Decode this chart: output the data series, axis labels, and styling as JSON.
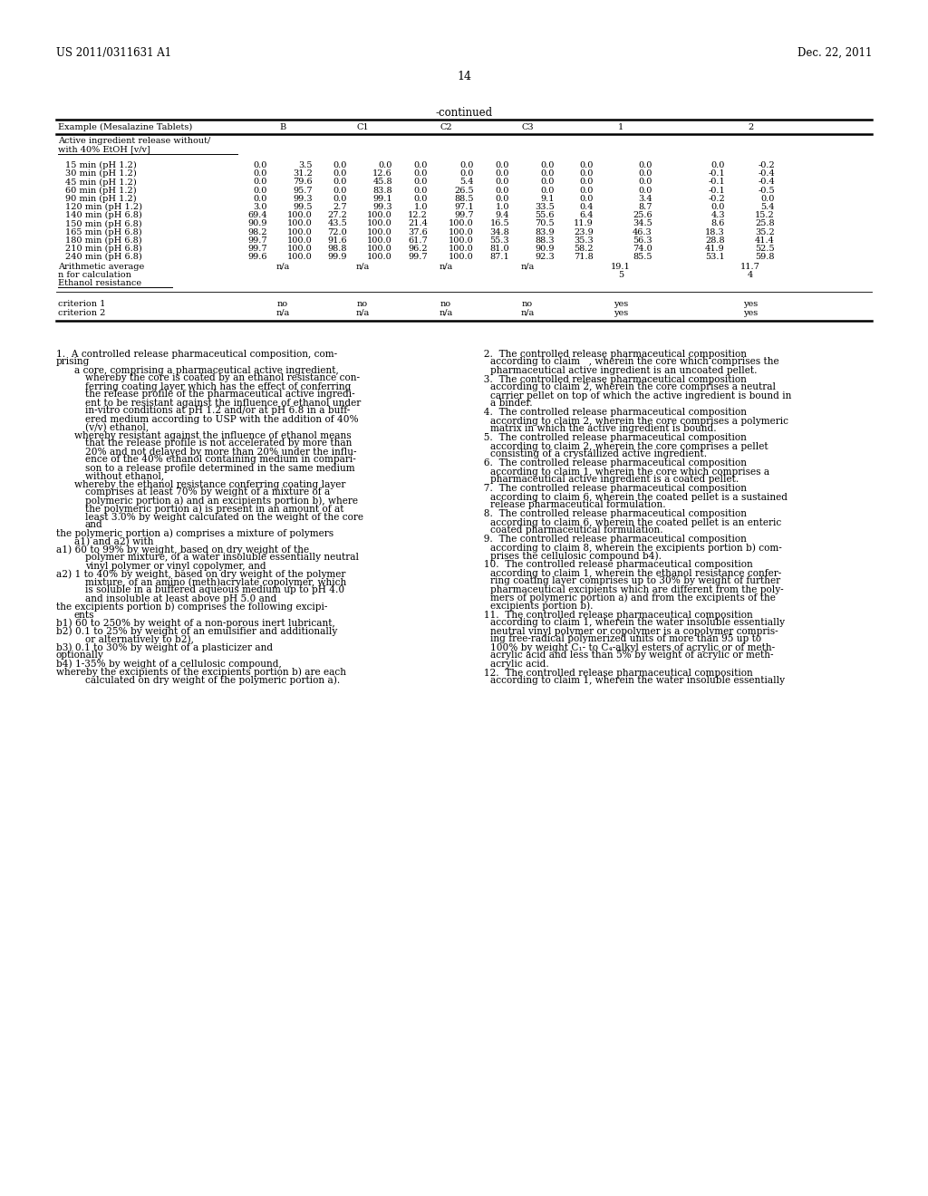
{
  "header_left": "US 2011/0311631 A1",
  "header_right": "Dec. 22, 2011",
  "page_number": "14",
  "table_title": "-continued",
  "rows": [
    [
      "15 min (pH 1.2)",
      "0.0",
      "3.5",
      "0.0",
      "0.0",
      "0.0",
      "0.0",
      "0.0",
      "0.0",
      "0.0",
      "0.0",
      "0.0",
      "-0.2"
    ],
    [
      "30 min (pH 1.2)",
      "0.0",
      "31.2",
      "0.0",
      "12.6",
      "0.0",
      "0.0",
      "0.0",
      "0.0",
      "0.0",
      "0.0",
      "-0.1",
      "-0.4"
    ],
    [
      "45 min (pH 1.2)",
      "0.0",
      "79.6",
      "0.0",
      "45.8",
      "0.0",
      "5.4",
      "0.0",
      "0.0",
      "0.0",
      "0.0",
      "-0.1",
      "-0.4"
    ],
    [
      "60 min (pH 1.2)",
      "0.0",
      "95.7",
      "0.0",
      "83.8",
      "0.0",
      "26.5",
      "0.0",
      "0.0",
      "0.0",
      "0.0",
      "-0.1",
      "-0.5"
    ],
    [
      "90 min (pH 1.2)",
      "0.0",
      "99.3",
      "0.0",
      "99.1",
      "0.0",
      "88.5",
      "0.0",
      "9.1",
      "0.0",
      "3.4",
      "-0.2",
      "0.0"
    ],
    [
      "120 min (pH 1.2)",
      "3.0",
      "99.5",
      "2.7",
      "99.3",
      "1.0",
      "97.1",
      "1.0",
      "33.5",
      "0.4",
      "8.7",
      "0.0",
      "5.4"
    ],
    [
      "140 min (pH 6.8)",
      "69.4",
      "100.0",
      "27.2",
      "100.0",
      "12.2",
      "99.7",
      "9.4",
      "55.6",
      "6.4",
      "25.6",
      "4.3",
      "15.2"
    ],
    [
      "150 min (pH 6.8)",
      "90.9",
      "100.0",
      "43.5",
      "100.0",
      "21.4",
      "100.0",
      "16.5",
      "70.5",
      "11.9",
      "34.5",
      "8.6",
      "25.8"
    ],
    [
      "165 min (pH 6.8)",
      "98.2",
      "100.0",
      "72.0",
      "100.0",
      "37.6",
      "100.0",
      "34.8",
      "83.9",
      "23.9",
      "46.3",
      "18.3",
      "35.2"
    ],
    [
      "180 min (pH 6.8)",
      "99.7",
      "100.0",
      "91.6",
      "100.0",
      "61.7",
      "100.0",
      "55.3",
      "88.3",
      "35.3",
      "56.3",
      "28.8",
      "41.4"
    ],
    [
      "210 min (pH 6.8)",
      "99.7",
      "100.0",
      "98.8",
      "100.0",
      "96.2",
      "100.0",
      "81.0",
      "90.9",
      "58.2",
      "74.0",
      "41.9",
      "52.5"
    ],
    [
      "240 min (pH 6.8)",
      "99.6",
      "100.0",
      "99.9",
      "100.0",
      "99.7",
      "100.0",
      "87.1",
      "92.3",
      "71.8",
      "85.5",
      "53.1",
      "59.8"
    ]
  ],
  "bg_color": "#ffffff"
}
